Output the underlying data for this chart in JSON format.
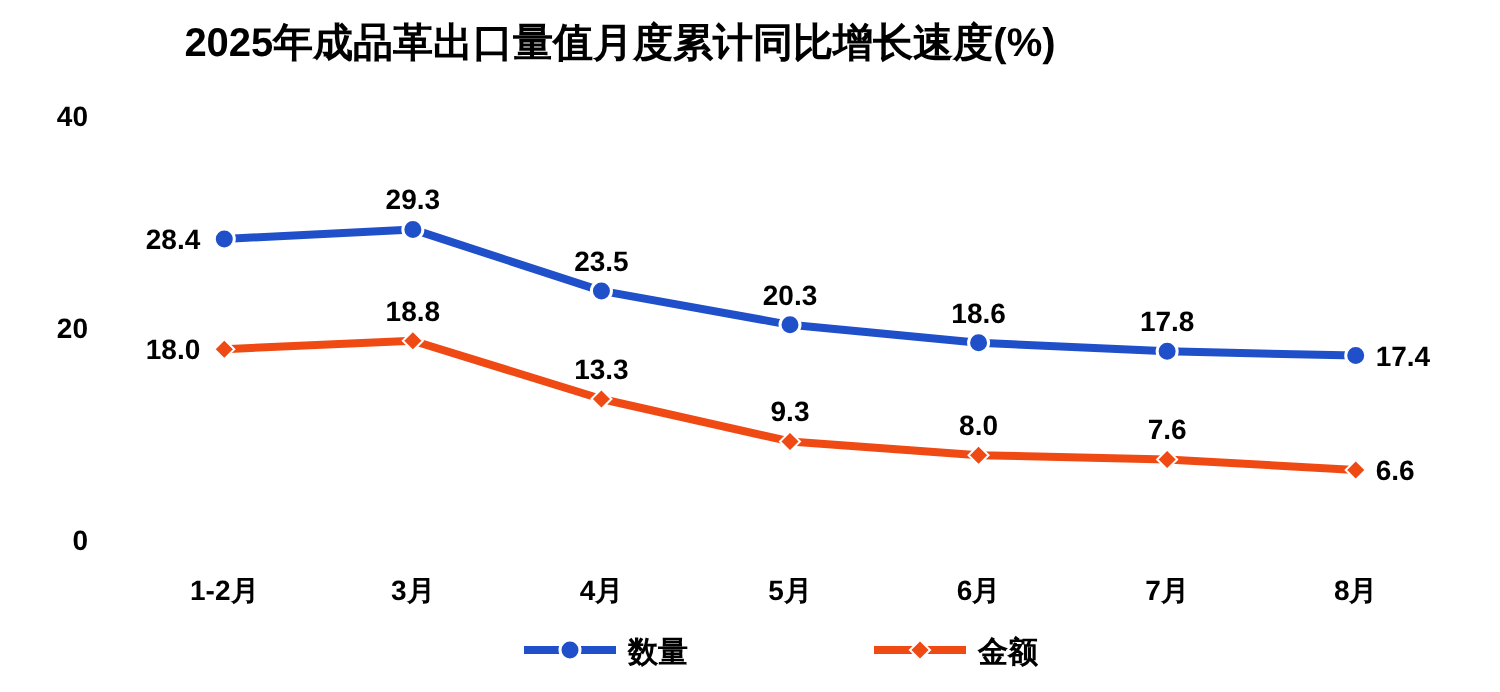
{
  "chart_data": {
    "type": "line",
    "title": "2025年成品革出口量值月度累计同比增长速度(%)",
    "categories": [
      "1-2月",
      "3月",
      "4月",
      "5月",
      "6月",
      "7月",
      "8月"
    ],
    "series": [
      {
        "name": "数量",
        "color": "#1f4fc9",
        "marker": "circle",
        "values": [
          28.4,
          29.3,
          23.5,
          20.3,
          18.6,
          17.8,
          17.4
        ]
      },
      {
        "name": "金额",
        "color": "#f04a14",
        "marker": "diamond",
        "values": [
          18.0,
          18.8,
          13.3,
          9.3,
          8.0,
          7.6,
          6.6
        ],
        "value_labels": [
          "18.0",
          "18.8",
          "13.3",
          "9.3",
          "8.0",
          "7.6",
          "6.6"
        ]
      }
    ],
    "ylim": [
      0,
      40
    ],
    "yticks": [
      0,
      20,
      40
    ],
    "data_labels": true,
    "legend": "bottom"
  }
}
